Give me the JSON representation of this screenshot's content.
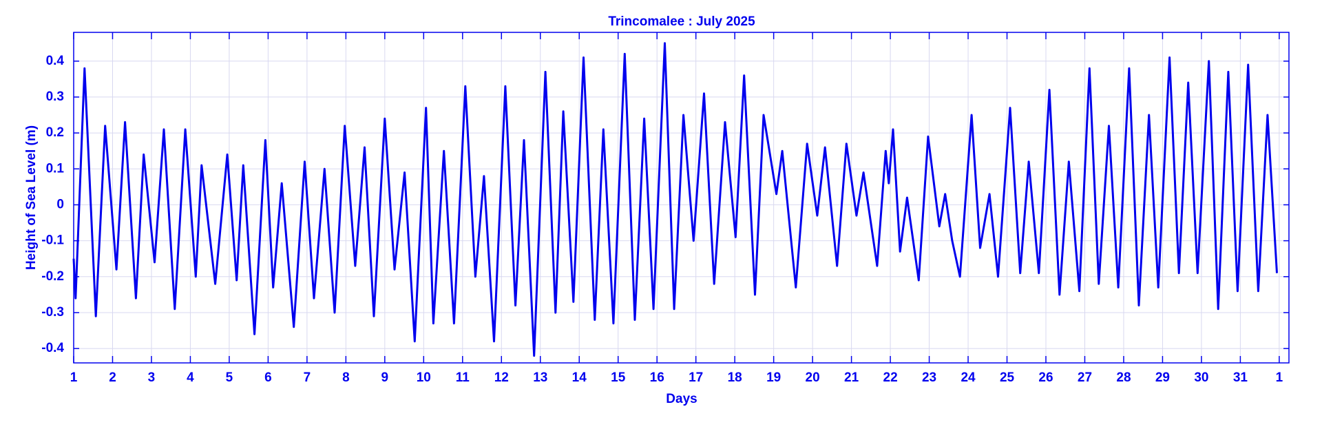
{
  "chart_data": {
    "type": "line",
    "title": "Trincomalee : July 2025",
    "xlabel": "Days",
    "ylabel": "Height of Sea Level (m)",
    "x": [
      1.0,
      1.05,
      1.28,
      1.57,
      1.81,
      2.1,
      2.32,
      2.6,
      2.8,
      3.08,
      3.32,
      3.6,
      3.87,
      4.14,
      4.29,
      4.64,
      4.95,
      5.19,
      5.36,
      5.65,
      5.93,
      6.13,
      6.35,
      6.66,
      6.94,
      7.18,
      7.45,
      7.71,
      7.97,
      8.24,
      8.48,
      8.72,
      9.0,
      9.25,
      9.51,
      9.77,
      10.06,
      10.25,
      10.52,
      10.78,
      11.07,
      11.33,
      11.55,
      11.81,
      12.1,
      12.36,
      12.58,
      12.84,
      13.13,
      13.39,
      13.59,
      13.85,
      14.11,
      14.4,
      14.62,
      14.88,
      15.17,
      15.43,
      15.67,
      15.91,
      16.2,
      16.44,
      16.68,
      16.94,
      17.21,
      17.47,
      17.75,
      18.02,
      18.24,
      18.52,
      18.74,
      19.07,
      19.22,
      19.57,
      19.86,
      20.12,
      20.32,
      20.63,
      20.87,
      21.13,
      21.31,
      21.66,
      21.88,
      21.96,
      22.07,
      22.25,
      22.43,
      22.73,
      22.97,
      23.26,
      23.41,
      23.59,
      23.79,
      24.09,
      24.31,
      24.55,
      24.77,
      25.08,
      25.34,
      25.56,
      25.82,
      26.09,
      26.35,
      26.59,
      26.86,
      27.12,
      27.36,
      27.62,
      27.86,
      28.14,
      28.39,
      28.65,
      28.89,
      29.18,
      29.42,
      29.66,
      29.9,
      30.19,
      30.43,
      30.69,
      30.93,
      31.2,
      31.46,
      31.7,
      31.94
    ],
    "series": [
      {
        "name": "Sea level",
        "color": "#0000ee",
        "values": [
          -0.15,
          -0.26,
          0.38,
          -0.31,
          0.22,
          -0.18,
          0.23,
          -0.26,
          0.14,
          -0.16,
          0.21,
          -0.29,
          0.21,
          -0.2,
          0.11,
          -0.22,
          0.14,
          -0.21,
          0.11,
          -0.36,
          0.18,
          -0.23,
          0.06,
          -0.34,
          0.12,
          -0.26,
          0.1,
          -0.3,
          0.22,
          -0.17,
          0.16,
          -0.31,
          0.24,
          -0.18,
          0.09,
          -0.38,
          0.27,
          -0.33,
          0.15,
          -0.33,
          0.33,
          -0.2,
          0.08,
          -0.38,
          0.33,
          -0.28,
          0.18,
          -0.42,
          0.37,
          -0.3,
          0.26,
          -0.27,
          0.41,
          -0.32,
          0.21,
          -0.33,
          0.42,
          -0.32,
          0.24,
          -0.29,
          0.45,
          -0.29,
          0.25,
          -0.1,
          0.31,
          -0.22,
          0.23,
          -0.09,
          0.36,
          -0.25,
          0.25,
          0.03,
          0.15,
          -0.23,
          0.17,
          -0.03,
          0.16,
          -0.17,
          0.17,
          -0.03,
          0.09,
          -0.17,
          0.15,
          0.06,
          0.21,
          -0.13,
          0.02,
          -0.21,
          0.19,
          -0.06,
          0.03,
          -0.1,
          -0.2,
          0.25,
          -0.12,
          0.03,
          -0.2,
          0.27,
          -0.19,
          0.12,
          -0.19,
          0.32,
          -0.25,
          0.12,
          -0.24,
          0.38,
          -0.22,
          0.22,
          -0.23,
          0.38,
          -0.28,
          0.25,
          -0.23,
          0.41,
          -0.19,
          0.34,
          -0.19,
          0.4,
          -0.29,
          0.37,
          -0.24,
          0.39,
          -0.24,
          0.25,
          -0.19
        ]
      }
    ],
    "xlim": [
      1,
      32.25
    ],
    "ylim": [
      -0.44,
      0.48
    ],
    "xticks": [
      1,
      2,
      3,
      4,
      5,
      6,
      7,
      8,
      9,
      10,
      11,
      12,
      13,
      14,
      15,
      16,
      17,
      18,
      19,
      20,
      21,
      22,
      23,
      24,
      25,
      26,
      27,
      28,
      29,
      30,
      31,
      {
        "value": 32,
        "label": "1"
      }
    ],
    "yticks": [
      -0.4,
      -0.3,
      -0.2,
      -0.1,
      0,
      0.1,
      0.2,
      0.3,
      0.4
    ],
    "grid": true
  }
}
